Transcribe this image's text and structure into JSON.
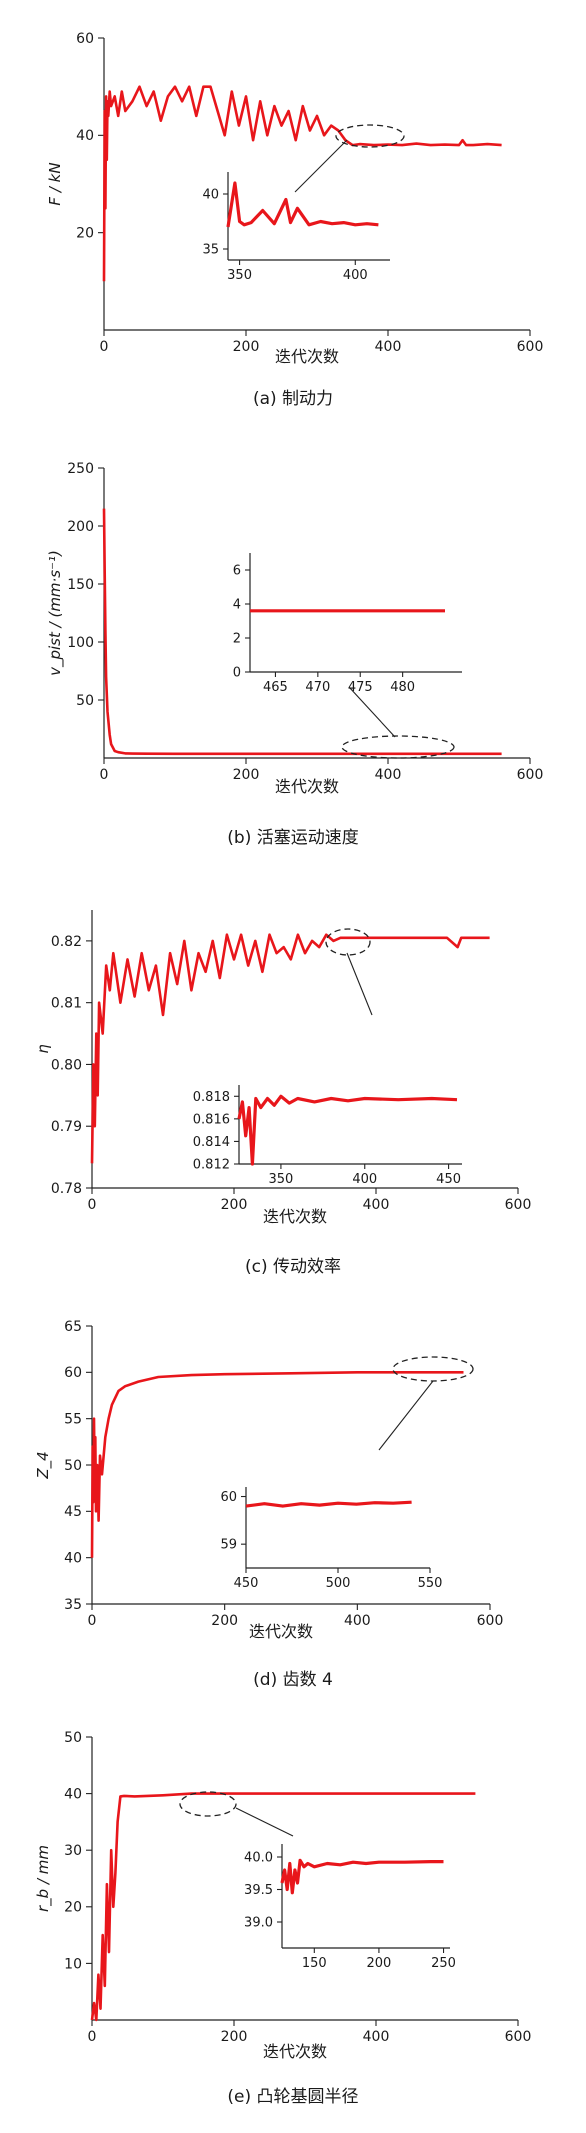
{
  "chart_data": [
    {
      "type": "line",
      "caption": "(a)  制动力",
      "xlabel": "迭代次数",
      "ylabel": "F / kN",
      "xlim": [
        0,
        600
      ],
      "ylim": [
        0,
        60
      ],
      "xticks": [
        "0",
        "200",
        "400",
        "600"
      ],
      "yticks": [
        "20",
        "40",
        "60"
      ],
      "color": "#e8161b",
      "series": [
        {
          "x": [
            0,
            1,
            2,
            3,
            4,
            5,
            6,
            8,
            10,
            15,
            20,
            25,
            30,
            40,
            50,
            60,
            70,
            80,
            90,
            100,
            110,
            120,
            130,
            140,
            150,
            160,
            170,
            180,
            190,
            200,
            210,
            220,
            230,
            240,
            250,
            260,
            270,
            280,
            290,
            300,
            310,
            320,
            330,
            340,
            350,
            360,
            380,
            400,
            420,
            440,
            460,
            480,
            500,
            505,
            510,
            520,
            540,
            560
          ],
          "y": [
            10,
            45,
            25,
            48,
            35,
            47,
            44,
            49,
            46,
            48,
            44,
            49,
            45,
            47,
            50,
            46,
            49,
            43,
            48,
            50,
            47,
            50,
            44,
            50,
            50,
            45,
            40,
            49,
            42,
            48,
            39,
            47,
            40,
            46,
            42,
            45,
            39,
            46,
            41,
            44,
            40,
            42,
            41,
            39,
            38,
            38.2,
            38,
            38.1,
            38,
            38.3,
            38,
            38.1,
            38,
            39,
            38,
            38,
            38.2,
            38
          ]
        }
      ],
      "inset": {
        "xlim": [
          345,
          415
        ],
        "ylim": [
          34,
          42
        ],
        "xticks": [
          "350",
          "400"
        ],
        "yticks": [
          "35",
          "40"
        ],
        "x": [
          345,
          348,
          350,
          352,
          355,
          360,
          365,
          370,
          372,
          375,
          380,
          385,
          390,
          395,
          400,
          405,
          410
        ],
        "y": [
          37,
          41,
          37.5,
          37.2,
          37.4,
          38.5,
          37.3,
          39.5,
          37.4,
          38.7,
          37.2,
          37.5,
          37.3,
          37.4,
          37.2,
          37.3,
          37.2
        ]
      }
    },
    {
      "type": "line",
      "caption": "(b)  活塞运动速度",
      "xlabel": "迭代次数",
      "ylabel": "v_pist / (mm·s⁻¹)",
      "xlim": [
        0,
        600
      ],
      "ylim": [
        0,
        250
      ],
      "xticks": [
        "0",
        "200",
        "400",
        "600"
      ],
      "yticks": [
        "50",
        "100",
        "150",
        "200",
        "250"
      ],
      "color": "#e8161b",
      "series": [
        {
          "x": [
            0,
            1,
            2,
            3,
            5,
            8,
            10,
            15,
            20,
            30,
            40,
            60,
            100,
            200,
            300,
            400,
            500,
            560
          ],
          "y": [
            215,
            160,
            110,
            70,
            40,
            20,
            12,
            6,
            5,
            4,
            3.8,
            3.7,
            3.6,
            3.6,
            3.6,
            3.6,
            3.6,
            3.6
          ]
        }
      ],
      "inset": {
        "xlim": [
          462,
          487
        ],
        "ylim": [
          0,
          7
        ],
        "xticks": [
          "465",
          "470",
          "475",
          "480"
        ],
        "yticks": [
          "0",
          "2",
          "4",
          "6"
        ],
        "x": [
          462,
          465,
          470,
          475,
          480,
          485
        ],
        "y": [
          3.6,
          3.6,
          3.6,
          3.6,
          3.6,
          3.6
        ]
      }
    },
    {
      "type": "line",
      "caption": "(c)  传动效率",
      "xlabel": "迭代次数",
      "ylabel": "η",
      "xlim": [
        0,
        600
      ],
      "ylim": [
        0.78,
        0.825
      ],
      "xticks": [
        "0",
        "200",
        "400",
        "600"
      ],
      "yticks": [
        "0.78",
        "0.79",
        "0.80",
        "0.81",
        "0.82"
      ],
      "color": "#e8161b",
      "series": [
        {
          "x": [
            0,
            2,
            4,
            6,
            8,
            10,
            15,
            20,
            25,
            30,
            40,
            50,
            60,
            70,
            80,
            90,
            100,
            110,
            120,
            130,
            140,
            150,
            160,
            170,
            180,
            190,
            200,
            210,
            220,
            230,
            240,
            250,
            260,
            270,
            280,
            290,
            300,
            310,
            320,
            330,
            340,
            350,
            360,
            380,
            400,
            450,
            500,
            515,
            520,
            530,
            560
          ],
          "y": [
            0.784,
            0.8,
            0.79,
            0.805,
            0.795,
            0.81,
            0.805,
            0.816,
            0.812,
            0.818,
            0.81,
            0.817,
            0.811,
            0.818,
            0.812,
            0.816,
            0.808,
            0.818,
            0.813,
            0.82,
            0.812,
            0.818,
            0.815,
            0.82,
            0.814,
            0.821,
            0.817,
            0.821,
            0.816,
            0.82,
            0.815,
            0.821,
            0.818,
            0.819,
            0.817,
            0.821,
            0.818,
            0.82,
            0.819,
            0.821,
            0.82,
            0.8205,
            0.8205,
            0.8205,
            0.8205,
            0.8205,
            0.8205,
            0.819,
            0.8205,
            0.8205,
            0.8205
          ]
        }
      ],
      "inset": {
        "xlim": [
          325,
          458
        ],
        "ylim": [
          0.812,
          0.819
        ],
        "xticks": [
          "350",
          "400",
          "450"
        ],
        "yticks": [
          "0.812",
          "0.814",
          "0.816",
          "0.818"
        ],
        "x": [
          325,
          327,
          329,
          331,
          333,
          335,
          338,
          342,
          346,
          350,
          355,
          360,
          370,
          380,
          390,
          400,
          420,
          440,
          455
        ],
        "y": [
          0.816,
          0.8175,
          0.8145,
          0.817,
          0.812,
          0.8178,
          0.817,
          0.8178,
          0.8172,
          0.818,
          0.8174,
          0.8178,
          0.8175,
          0.8178,
          0.8176,
          0.8178,
          0.8177,
          0.8178,
          0.8177
        ]
      }
    },
    {
      "type": "line",
      "caption": "(d)  齿数 4",
      "xlabel": "迭代次数",
      "ylabel": "Z_4",
      "xlim": [
        0,
        600
      ],
      "ylim": [
        35,
        65
      ],
      "xticks": [
        "0",
        "200",
        "400",
        "600"
      ],
      "yticks": [
        "35",
        "40",
        "45",
        "50",
        "55",
        "60",
        "65"
      ],
      "color": "#e8161b",
      "series": [
        {
          "x": [
            0,
            1,
            2,
            3,
            4,
            5,
            6,
            8,
            10,
            12,
            15,
            20,
            25,
            30,
            40,
            50,
            70,
            100,
            150,
            200,
            300,
            400,
            500,
            560
          ],
          "y": [
            40,
            52,
            46,
            55,
            48,
            53,
            45,
            50,
            44,
            51,
            49,
            53,
            55,
            56.5,
            58,
            58.5,
            59,
            59.5,
            59.7,
            59.8,
            59.9,
            60,
            60,
            60
          ]
        }
      ],
      "inset": {
        "xlim": [
          450,
          550
        ],
        "ylim": [
          58.5,
          60.2
        ],
        "xticks": [
          "450",
          "500",
          "550"
        ],
        "yticks": [
          "59",
          "60"
        ],
        "x": [
          450,
          460,
          470,
          480,
          490,
          500,
          510,
          520,
          530,
          540
        ],
        "y": [
          59.8,
          59.85,
          59.8,
          59.85,
          59.82,
          59.86,
          59.84,
          59.87,
          59.86,
          59.88
        ]
      }
    },
    {
      "type": "line",
      "caption": "(e)  凸轮基圆半径",
      "xlabel": "迭代次数",
      "ylabel": "r_b / mm",
      "xlim": [
        0,
        600
      ],
      "ylim": [
        0,
        50
      ],
      "xticks": [
        "0",
        "200",
        "400",
        "600"
      ],
      "yticks": [
        "10",
        "20",
        "30",
        "40",
        "50"
      ],
      "color": "#e8161b",
      "series": [
        {
          "x": [
            0,
            3,
            6,
            9,
            12,
            15,
            18,
            21,
            24,
            27,
            30,
            33,
            36,
            40,
            45,
            60,
            100,
            140,
            200,
            300,
            400,
            500,
            540
          ],
          "y": [
            0,
            3,
            0,
            8,
            2,
            15,
            6,
            24,
            12,
            30,
            20,
            26,
            35,
            39.5,
            39.6,
            39.5,
            39.7,
            40,
            40,
            40,
            40,
            40,
            40
          ]
        }
      ],
      "inset": {
        "xlim": [
          125,
          255
        ],
        "ylim": [
          38.6,
          40.2
        ],
        "xticks": [
          "150",
          "200",
          "250"
        ],
        "yticks": [
          "39.0",
          "39.5",
          "40.0"
        ],
        "x": [
          125,
          127,
          129,
          131,
          133,
          135,
          137,
          139,
          142,
          145,
          150,
          160,
          170,
          180,
          190,
          200,
          220,
          240,
          250
        ],
        "y": [
          39.6,
          39.8,
          39.5,
          39.9,
          39.45,
          39.8,
          39.6,
          39.95,
          39.85,
          39.9,
          39.85,
          39.9,
          39.88,
          39.92,
          39.9,
          39.92,
          39.92,
          39.93,
          39.93
        ]
      }
    }
  ]
}
